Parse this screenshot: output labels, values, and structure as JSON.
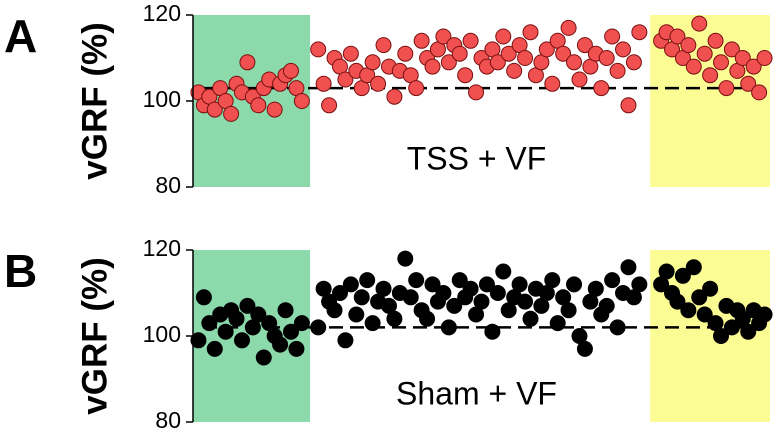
{
  "chart_data": [
    {
      "type": "scatter",
      "panel_label": "A",
      "ylabel": "vGRF (%)",
      "annotation": "TSS + VF",
      "ylim": [
        80,
        120
      ],
      "yticks": [
        80,
        100,
        120
      ],
      "xlim": [
        0,
        106
      ],
      "regions": [
        {
          "xlim": [
            0,
            21.5
          ],
          "color": "#8cd9ab"
        },
        {
          "xlim": [
            84,
            106
          ],
          "color": "#fcfc94"
        }
      ],
      "reference": 103,
      "color": "#f05050",
      "edgecolor": "#7a1010",
      "x": [
        1,
        2,
        3,
        4,
        5,
        6,
        7,
        8,
        9,
        10,
        11,
        12,
        13,
        14,
        15,
        16,
        17,
        18,
        19,
        20,
        23,
        24,
        25,
        26,
        27,
        28,
        29,
        30,
        31,
        32,
        33,
        34,
        35,
        36,
        37,
        38,
        39,
        40,
        41,
        42,
        43,
        44,
        45,
        46,
        47,
        48,
        49,
        50,
        51,
        52,
        53,
        54,
        55,
        56,
        57,
        58,
        59,
        60,
        61,
        62,
        63,
        64,
        65,
        66,
        67,
        68,
        69,
        70,
        71,
        72,
        73,
        74,
        75,
        76,
        77,
        78,
        79,
        80,
        81,
        82,
        86,
        87,
        88,
        89,
        90,
        91,
        92,
        93,
        94,
        95,
        96,
        97,
        98,
        99,
        100,
        101,
        102,
        103,
        104,
        105
      ],
      "values": [
        102,
        99,
        101,
        98,
        103,
        100,
        97,
        104,
        102,
        109,
        101,
        99,
        103,
        105,
        98,
        104,
        106,
        107,
        103,
        100,
        112,
        104,
        99,
        110,
        108,
        105,
        111,
        107,
        103,
        106,
        109,
        104,
        113,
        108,
        101,
        107,
        111,
        106,
        103,
        114,
        110,
        108,
        112,
        115,
        109,
        113,
        111,
        106,
        114,
        102,
        110,
        108,
        112,
        109,
        115,
        111,
        107,
        113,
        110,
        116,
        106,
        109,
        112,
        104,
        114,
        111,
        117,
        109,
        105,
        113,
        108,
        111,
        103,
        110,
        115,
        107,
        112,
        99,
        109,
        116,
        114,
        116,
        112,
        115,
        110,
        113,
        108,
        118,
        111,
        106,
        114,
        109,
        103,
        112,
        107,
        110,
        104,
        108,
        102,
        110
      ]
    },
    {
      "type": "scatter",
      "panel_label": "B",
      "ylabel": "vGRF (%)",
      "annotation": "Sham + VF",
      "ylim": [
        80,
        120
      ],
      "yticks": [
        80,
        100,
        120
      ],
      "xlim": [
        0,
        106
      ],
      "regions": [
        {
          "xlim": [
            0,
            21.5
          ],
          "color": "#8cd9ab"
        },
        {
          "xlim": [
            84,
            106
          ],
          "color": "#fcfc94"
        }
      ],
      "reference": 102,
      "color": "#000000",
      "edgecolor": "#000000",
      "x": [
        1,
        2,
        3,
        4,
        5,
        6,
        7,
        8,
        9,
        10,
        11,
        12,
        13,
        14,
        15,
        16,
        17,
        18,
        19,
        20,
        23,
        24,
        25,
        26,
        27,
        28,
        29,
        30,
        31,
        32,
        33,
        34,
        35,
        36,
        37,
        38,
        39,
        40,
        41,
        42,
        43,
        44,
        45,
        46,
        47,
        48,
        49,
        50,
        51,
        52,
        53,
        54,
        55,
        56,
        57,
        58,
        59,
        60,
        61,
        62,
        63,
        64,
        65,
        66,
        67,
        68,
        69,
        70,
        71,
        72,
        73,
        74,
        75,
        76,
        77,
        78,
        79,
        80,
        81,
        82,
        86,
        87,
        88,
        89,
        90,
        91,
        92,
        93,
        94,
        95,
        96,
        97,
        98,
        99,
        100,
        101,
        102,
        103,
        104,
        105
      ],
      "values": [
        99,
        109,
        103,
        97,
        105,
        101,
        106,
        104,
        99,
        107,
        102,
        105,
        95,
        103,
        100,
        98,
        106,
        101,
        97,
        103,
        102,
        111,
        108,
        106,
        110,
        99,
        112,
        105,
        109,
        113,
        103,
        108,
        111,
        107,
        104,
        110,
        118,
        109,
        113,
        106,
        104,
        112,
        108,
        110,
        102,
        107,
        113,
        109,
        111,
        105,
        108,
        112,
        101,
        110,
        115,
        106,
        109,
        112,
        108,
        104,
        111,
        107,
        110,
        113,
        103,
        109,
        106,
        112,
        100,
        97,
        108,
        111,
        105,
        107,
        113,
        102,
        110,
        116,
        109,
        112,
        112,
        115,
        110,
        108,
        114,
        106,
        116,
        109,
        105,
        111,
        103,
        100,
        107,
        102,
        106,
        104,
        101,
        106,
        103,
        105
      ]
    }
  ]
}
